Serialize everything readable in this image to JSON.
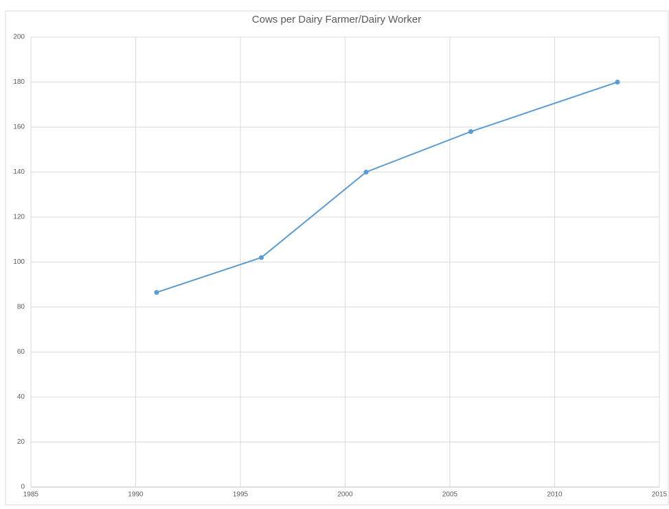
{
  "chart_data": {
    "type": "line",
    "title": "Cows per Dairy Farmer/Dairy Worker",
    "series": [
      {
        "name": "Cows per Dairy Farmer/Dairy Worker",
        "color": "#5b9bd5",
        "x": [
          1991,
          1996,
          2001,
          2006,
          2013
        ],
        "values": [
          86.5,
          102,
          140,
          158,
          180
        ]
      }
    ],
    "xlim": [
      1985,
      2015
    ],
    "xticks": [
      1985,
      1990,
      1995,
      2000,
      2005,
      2010,
      2015
    ],
    "ylim": [
      0,
      200
    ],
    "yticks": [
      0,
      20,
      40,
      60,
      80,
      100,
      120,
      140,
      160,
      180,
      200
    ],
    "grid": true
  }
}
